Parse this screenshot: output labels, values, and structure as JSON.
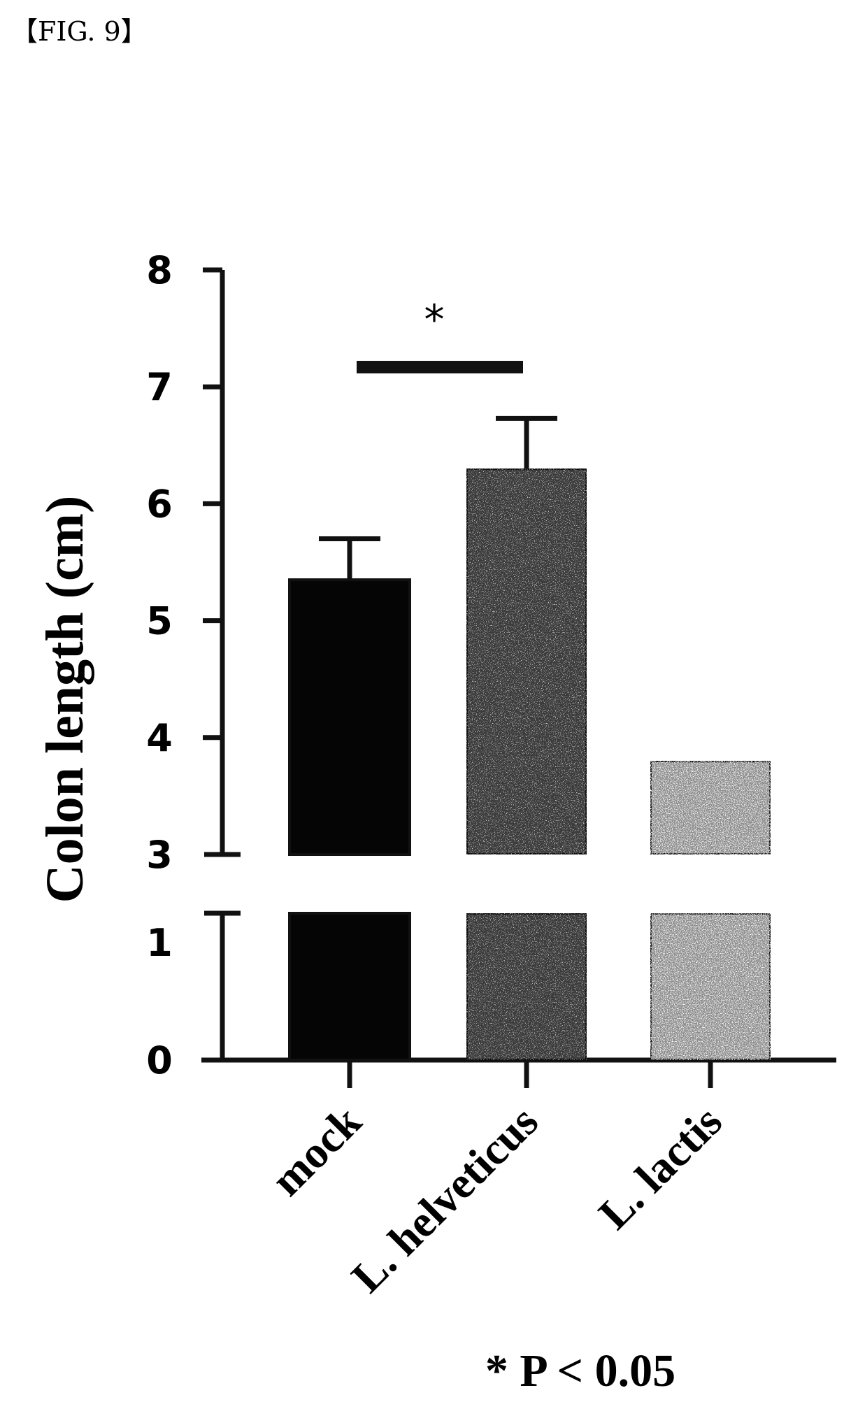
{
  "figure_label": "【FIG. 9】",
  "chart_data": {
    "type": "bar",
    "title": "",
    "xlabel": "",
    "ylabel": "Colon length (cm)",
    "categories": [
      "mock",
      "L. helveticus",
      "L. lactis"
    ],
    "values": [
      5.35,
      6.3,
      3.8
    ],
    "error": [
      0.35,
      0.43,
      null
    ],
    "y_break": {
      "lower": [
        0,
        1.25
      ],
      "upper": [
        3,
        8
      ]
    },
    "yticks_lower": [
      "0",
      "1"
    ],
    "yticks_upper": [
      "3",
      "4",
      "5",
      "6",
      "7",
      "8"
    ],
    "bar_colors": [
      "#050505",
      "#3a3a3a",
      "#8a8a8a"
    ],
    "significance": {
      "between": [
        "mock",
        "L. helveticus"
      ],
      "marker": "*"
    },
    "note": "* P < 0.05",
    "grid": false,
    "legend": "none"
  }
}
